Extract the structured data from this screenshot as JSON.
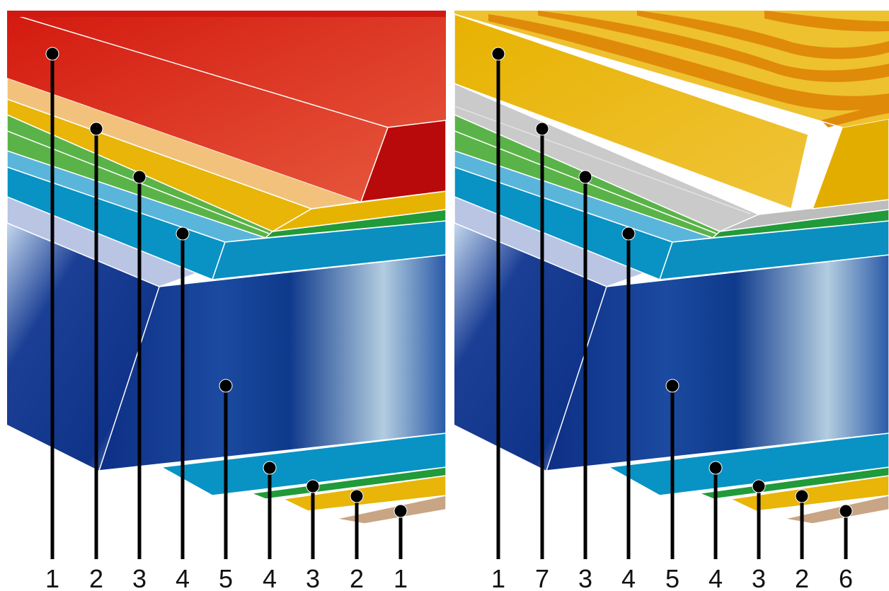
{
  "panels": [
    {
      "id": "left",
      "top_surface": "red",
      "labels": [
        "1",
        "2",
        "3",
        "4",
        "5",
        "4",
        "3",
        "2",
        "1"
      ]
    },
    {
      "id": "right",
      "top_surface": "wood-grain",
      "labels": [
        "1",
        "7",
        "3",
        "4",
        "5",
        "4",
        "3",
        "2",
        "6"
      ]
    }
  ],
  "colors": {
    "red": "#e3241b",
    "red_dark": "#b80a0a",
    "peach": "#f2c27c",
    "yellow": "#e8b508",
    "green": "#5ab348",
    "green_dark": "#219a3a",
    "light_blue": "#5ab5db",
    "teal": "#0893c4",
    "lavender": "#bac5e4",
    "navy": "#10338a",
    "tan": "#c8a584",
    "gray": "#cacaca",
    "wood_light": "#eec12f",
    "wood_dark": "#e08a0a"
  }
}
